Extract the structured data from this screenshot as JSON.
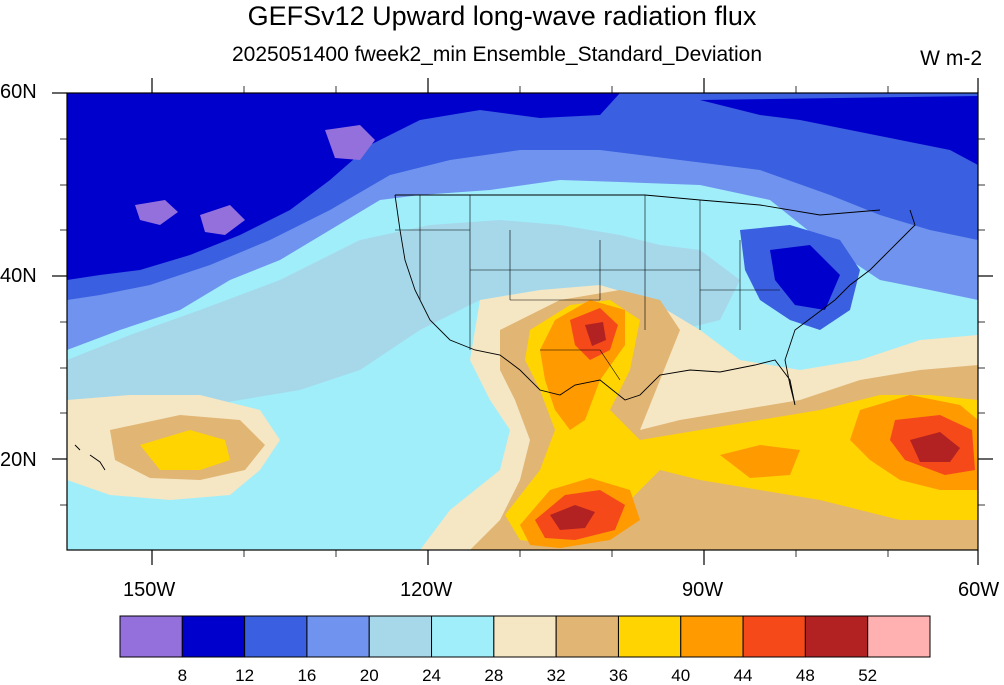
{
  "title": "GEFSv12 Upward long-wave radiation flux",
  "subtitle": "2025051400 fweek2_min Ensemble_Standard_Deviation",
  "units": "W m-2",
  "lat_labels": [
    "60N",
    "40N",
    "20N"
  ],
  "lon_labels": [
    "150W",
    "120W",
    "90W",
    "60W"
  ],
  "map_extent": {
    "lon_min": -159,
    "lon_max": -60,
    "lat_min": 10,
    "lat_max": 60
  },
  "colorbar": {
    "colors": [
      "#9370DB",
      "#0000CD",
      "#3A5FE0",
      "#6F93EE",
      "#A6D8EA",
      "#A0EEFA",
      "#F5E6C4",
      "#E1B573",
      "#FFD400",
      "#FF9A00",
      "#F5491A",
      "#B22222",
      "#FFB0B0"
    ],
    "labels": [
      "8",
      "12",
      "16",
      "20",
      "24",
      "28",
      "32",
      "36",
      "40",
      "44",
      "48",
      "52"
    ]
  }
}
